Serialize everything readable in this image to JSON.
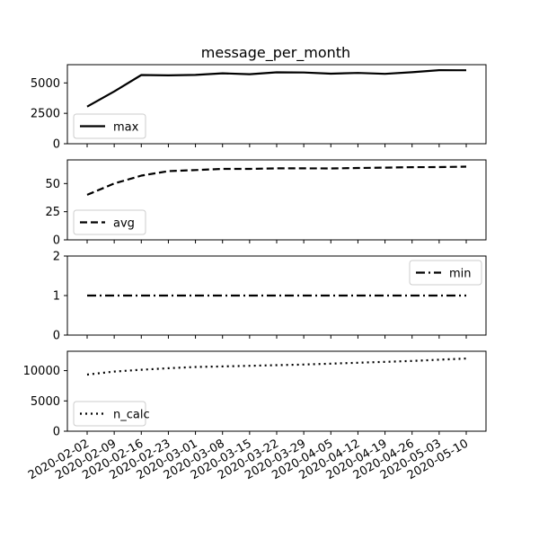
{
  "chart_data": {
    "type": "line",
    "title": "message_per_month",
    "x": [
      "2020-02-02",
      "2020-02-09",
      "2020-02-16",
      "2020-02-23",
      "2020-03-01",
      "2020-03-08",
      "2020-03-15",
      "2020-03-22",
      "2020-03-29",
      "2020-04-05",
      "2020-04-12",
      "2020-04-19",
      "2020-04-26",
      "2020-05-03",
      "2020-05-10"
    ],
    "x_tick_labels": [
      "2020-02-02",
      "2020-02-09",
      "2020-02-16",
      "2020-02-23",
      "2020-03-01",
      "2020-03-08",
      "2020-03-15",
      "2020-03-22",
      "2020-03-29",
      "2020-04-05",
      "2020-04-12",
      "2020-04-19",
      "2020-04-26",
      "2020-05-03",
      "2020-05-10"
    ],
    "subplots": [
      {
        "name": "max",
        "line_style": "solid",
        "legend_position": "lower-left",
        "ylim": [
          0,
          6500
        ],
        "yticks": [
          0,
          2500,
          5000
        ],
        "values": [
          3050,
          4300,
          5650,
          5620,
          5660,
          5790,
          5720,
          5870,
          5860,
          5760,
          5820,
          5750,
          5880,
          6050,
          6040
        ]
      },
      {
        "name": "avg",
        "line_style": "dashed",
        "legend_position": "lower-left",
        "ylim": [
          0,
          71
        ],
        "yticks": [
          0,
          25,
          50
        ],
        "values": [
          40,
          50,
          57,
          61,
          62,
          63,
          63,
          63.5,
          63.5,
          63.4,
          63.8,
          64.1,
          64.5,
          64.6,
          65
        ]
      },
      {
        "name": "min",
        "line_style": "dashdot",
        "legend_position": "upper-right",
        "ylim": [
          0,
          2
        ],
        "yticks": [
          0,
          1,
          2
        ],
        "values": [
          1,
          1,
          1,
          1,
          1,
          1,
          1,
          1,
          1,
          1,
          1,
          1,
          1,
          1,
          1
        ]
      },
      {
        "name": "n_calc",
        "line_style": "dotted",
        "legend_position": "lower-left",
        "ylim": [
          0,
          13200
        ],
        "yticks": [
          0,
          5000,
          10000
        ],
        "values": [
          9350,
          9850,
          10150,
          10400,
          10600,
          10700,
          10800,
          10900,
          11000,
          11150,
          11300,
          11450,
          11600,
          11800,
          12000
        ]
      }
    ],
    "grid": false
  }
}
